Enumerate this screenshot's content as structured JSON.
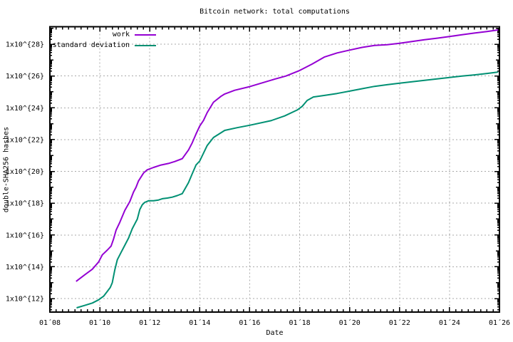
{
  "chart_data": {
    "type": "line",
    "title": "Bitcoin network: total computations",
    "xlabel": "Date",
    "ylabel": "double-SHA256 hashes",
    "grid": true,
    "legend_position": "top-left-inside",
    "x_range": [
      2008,
      2026
    ],
    "y_scale": "log10",
    "y_log_range": [
      11.15,
      29.1
    ],
    "x_minor_step_years": 0.25,
    "x_ticks": [
      {
        "year": 2008,
        "label": "01´08"
      },
      {
        "year": 2010,
        "label": "01´10"
      },
      {
        "year": 2012,
        "label": "01´12"
      },
      {
        "year": 2014,
        "label": "01´14"
      },
      {
        "year": 2016,
        "label": "01´16"
      },
      {
        "year": 2018,
        "label": "01´18"
      },
      {
        "year": 2020,
        "label": "01´20"
      },
      {
        "year": 2022,
        "label": "01´22"
      },
      {
        "year": 2024,
        "label": "01´24"
      },
      {
        "year": 2026,
        "label": "01´26"
      }
    ],
    "y_ticks": [
      {
        "exp": 12,
        "label": "1x10^{12}"
      },
      {
        "exp": 14,
        "label": "1x10^{14}"
      },
      {
        "exp": 16,
        "label": "1x10^{16}"
      },
      {
        "exp": 18,
        "label": "1x10^{18}"
      },
      {
        "exp": 20,
        "label": "1x10^{20}"
      },
      {
        "exp": 22,
        "label": "1x10^{22}"
      },
      {
        "exp": 24,
        "label": "1x10^{24}"
      },
      {
        "exp": 26,
        "label": "1x10^{26}"
      },
      {
        "exp": 28,
        "label": "1x10^{28}"
      }
    ],
    "colors": {
      "grid": "#aaaaaa",
      "axis": "#000000",
      "background": "#ffffff"
    },
    "series": [
      {
        "name": "work",
        "color": "#9400d3",
        "points_format": "[year, log10(double-SHA256 hashes)]",
        "points": [
          [
            2009.05,
            13.08
          ],
          [
            2009.4,
            13.5
          ],
          [
            2009.7,
            13.85
          ],
          [
            2009.95,
            14.3
          ],
          [
            2010.1,
            14.75
          ],
          [
            2010.3,
            15.05
          ],
          [
            2010.45,
            15.3
          ],
          [
            2010.55,
            15.75
          ],
          [
            2010.65,
            16.3
          ],
          [
            2010.8,
            16.8
          ],
          [
            2011.0,
            17.55
          ],
          [
            2011.2,
            18.1
          ],
          [
            2011.35,
            18.7
          ],
          [
            2011.45,
            19.0
          ],
          [
            2011.55,
            19.4
          ],
          [
            2011.75,
            19.9
          ],
          [
            2011.9,
            20.1
          ],
          [
            2012.15,
            20.25
          ],
          [
            2012.45,
            20.4
          ],
          [
            2012.75,
            20.5
          ],
          [
            2013.0,
            20.62
          ],
          [
            2013.3,
            20.8
          ],
          [
            2013.55,
            21.35
          ],
          [
            2013.7,
            21.8
          ],
          [
            2013.85,
            22.35
          ],
          [
            2014.0,
            22.85
          ],
          [
            2014.15,
            23.2
          ],
          [
            2014.3,
            23.7
          ],
          [
            2014.55,
            24.35
          ],
          [
            2014.85,
            24.72
          ],
          [
            2015.0,
            24.87
          ],
          [
            2015.4,
            25.1
          ],
          [
            2016.0,
            25.33
          ],
          [
            2016.5,
            25.57
          ],
          [
            2017.0,
            25.8
          ],
          [
            2017.45,
            26.0
          ],
          [
            2018.0,
            26.35
          ],
          [
            2018.5,
            26.75
          ],
          [
            2019.0,
            27.2
          ],
          [
            2019.5,
            27.45
          ],
          [
            2020.0,
            27.63
          ],
          [
            2020.5,
            27.8
          ],
          [
            2021.0,
            27.92
          ],
          [
            2021.5,
            27.97
          ],
          [
            2022.0,
            28.06
          ],
          [
            2022.5,
            28.17
          ],
          [
            2023.0,
            28.28
          ],
          [
            2023.5,
            28.38
          ],
          [
            2024.0,
            28.48
          ],
          [
            2024.5,
            28.6
          ],
          [
            2025.0,
            28.7
          ],
          [
            2025.5,
            28.8
          ],
          [
            2025.95,
            28.9
          ]
        ]
      },
      {
        "name": "standard deviation",
        "color": "#009073",
        "points_format": "[year, log10(double-SHA256 hashes)]",
        "points": [
          [
            2009.07,
            11.42
          ],
          [
            2009.4,
            11.57
          ],
          [
            2009.7,
            11.72
          ],
          [
            2009.95,
            11.92
          ],
          [
            2010.15,
            12.15
          ],
          [
            2010.3,
            12.45
          ],
          [
            2010.42,
            12.7
          ],
          [
            2010.5,
            13.0
          ],
          [
            2010.6,
            13.8
          ],
          [
            2010.7,
            14.45
          ],
          [
            2010.85,
            14.9
          ],
          [
            2010.95,
            15.2
          ],
          [
            2011.05,
            15.5
          ],
          [
            2011.15,
            15.8
          ],
          [
            2011.2,
            16.0
          ],
          [
            2011.3,
            16.4
          ],
          [
            2011.4,
            16.7
          ],
          [
            2011.5,
            17.0
          ],
          [
            2011.6,
            17.6
          ],
          [
            2011.7,
            17.9
          ],
          [
            2011.8,
            18.05
          ],
          [
            2011.95,
            18.15
          ],
          [
            2012.15,
            18.15
          ],
          [
            2012.35,
            18.2
          ],
          [
            2012.5,
            18.28
          ],
          [
            2012.7,
            18.32
          ],
          [
            2012.9,
            18.38
          ],
          [
            2013.1,
            18.48
          ],
          [
            2013.3,
            18.6
          ],
          [
            2013.55,
            19.3
          ],
          [
            2013.7,
            19.85
          ],
          [
            2013.85,
            20.4
          ],
          [
            2014.0,
            20.65
          ],
          [
            2014.3,
            21.63
          ],
          [
            2014.55,
            22.13
          ],
          [
            2015.0,
            22.58
          ],
          [
            2015.5,
            22.75
          ],
          [
            2016.0,
            22.9
          ],
          [
            2016.85,
            23.19
          ],
          [
            2017.4,
            23.49
          ],
          [
            2017.9,
            23.86
          ],
          [
            2018.1,
            24.09
          ],
          [
            2018.3,
            24.46
          ],
          [
            2018.55,
            24.68
          ],
          [
            2019.0,
            24.78
          ],
          [
            2019.5,
            24.9
          ],
          [
            2020.0,
            25.05
          ],
          [
            2020.5,
            25.2
          ],
          [
            2021.0,
            25.35
          ],
          [
            2021.5,
            25.45
          ],
          [
            2022.0,
            25.55
          ],
          [
            2022.5,
            25.64
          ],
          [
            2023.0,
            25.73
          ],
          [
            2023.5,
            25.82
          ],
          [
            2024.0,
            25.91
          ],
          [
            2024.5,
            26.0
          ],
          [
            2025.0,
            26.07
          ],
          [
            2025.5,
            26.16
          ],
          [
            2025.95,
            26.25
          ]
        ]
      }
    ]
  }
}
